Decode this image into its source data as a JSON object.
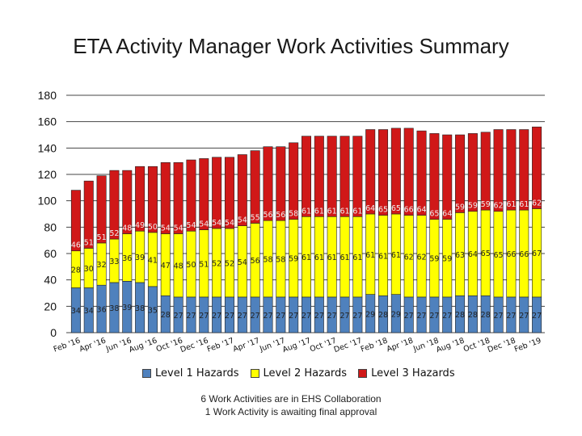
{
  "title": "ETA Activity Manager Work Activities Summary",
  "notes": [
    "6 Work Activities are in EHS Collaboration",
    "1 Work Activity is awaiting final approval"
  ],
  "chart_data": {
    "type": "bar",
    "stacked": true,
    "ylim": [
      0,
      180
    ],
    "yticks": [
      0,
      20,
      40,
      60,
      80,
      100,
      120,
      140,
      160,
      180
    ],
    "grid": true,
    "legend_position": "bottom",
    "categories": [
      "Feb '16",
      "Mar '16",
      "Apr '16",
      "May '16",
      "Jun '16",
      "Jul '16",
      "Aug '16",
      "Sep '16",
      "Oct '16",
      "Nov '16",
      "Dec '16",
      "Jan '17",
      "Feb '17",
      "Mar '17",
      "Apr '17",
      "May '17",
      "Jun '17",
      "Jul '17",
      "Aug '17",
      "Sep '17",
      "Oct '17",
      "Nov '17",
      "Dec '17",
      "Jan '18",
      "Feb '18",
      "Mar '18",
      "Apr '18",
      "May '18",
      "Jun '18",
      "Jul '18",
      "Aug '18",
      "Sep '18",
      "Oct '18",
      "Nov '18",
      "Dec '18",
      "Jan '19",
      "Feb '19"
    ],
    "x_tick_labels": [
      "Feb '16",
      "Apr '16",
      "Jun '16",
      "Aug '16",
      "Oct '16",
      "Dec '16",
      "Feb '17",
      "Apr '17",
      "Jun '17",
      "Aug '17",
      "Oct '17",
      "Dec '17",
      "Feb '18",
      "Apr '18",
      "Jun '18",
      "Aug '18",
      "Oct '18",
      "Dec '18",
      "Feb '19"
    ],
    "series": [
      {
        "name": "Level 1 Hazards",
        "color": "#4f81bd",
        "values": [
          34,
          34,
          36,
          38,
          39,
          38,
          35,
          28,
          27,
          27,
          27,
          27,
          27,
          27,
          27,
          27,
          27,
          27,
          27,
          27,
          27,
          27,
          27,
          29,
          28,
          29,
          27,
          27,
          27,
          27,
          28,
          28,
          28,
          27,
          27,
          27,
          27
        ]
      },
      {
        "name": "Level 2 Hazards",
        "color": "#ffff00",
        "values": [
          28,
          30,
          32,
          33,
          36,
          39,
          41,
          47,
          48,
          50,
          51,
          52,
          52,
          54,
          56,
          58,
          58,
          59,
          61,
          61,
          61,
          61,
          61,
          61,
          61,
          61,
          62,
          62,
          59,
          59,
          63,
          64,
          65,
          65,
          66,
          66,
          67
        ]
      },
      {
        "name": "Level 3 Hazards",
        "color": "#d01818",
        "values": [
          46,
          51,
          51,
          52,
          48,
          49,
          50,
          54,
          54,
          54,
          54,
          54,
          54,
          54,
          55,
          56,
          56,
          58,
          61,
          61,
          61,
          61,
          61,
          64,
          65,
          65,
          66,
          64,
          65,
          64,
          59,
          59,
          59,
          62,
          61,
          61,
          62
        ]
      }
    ]
  }
}
